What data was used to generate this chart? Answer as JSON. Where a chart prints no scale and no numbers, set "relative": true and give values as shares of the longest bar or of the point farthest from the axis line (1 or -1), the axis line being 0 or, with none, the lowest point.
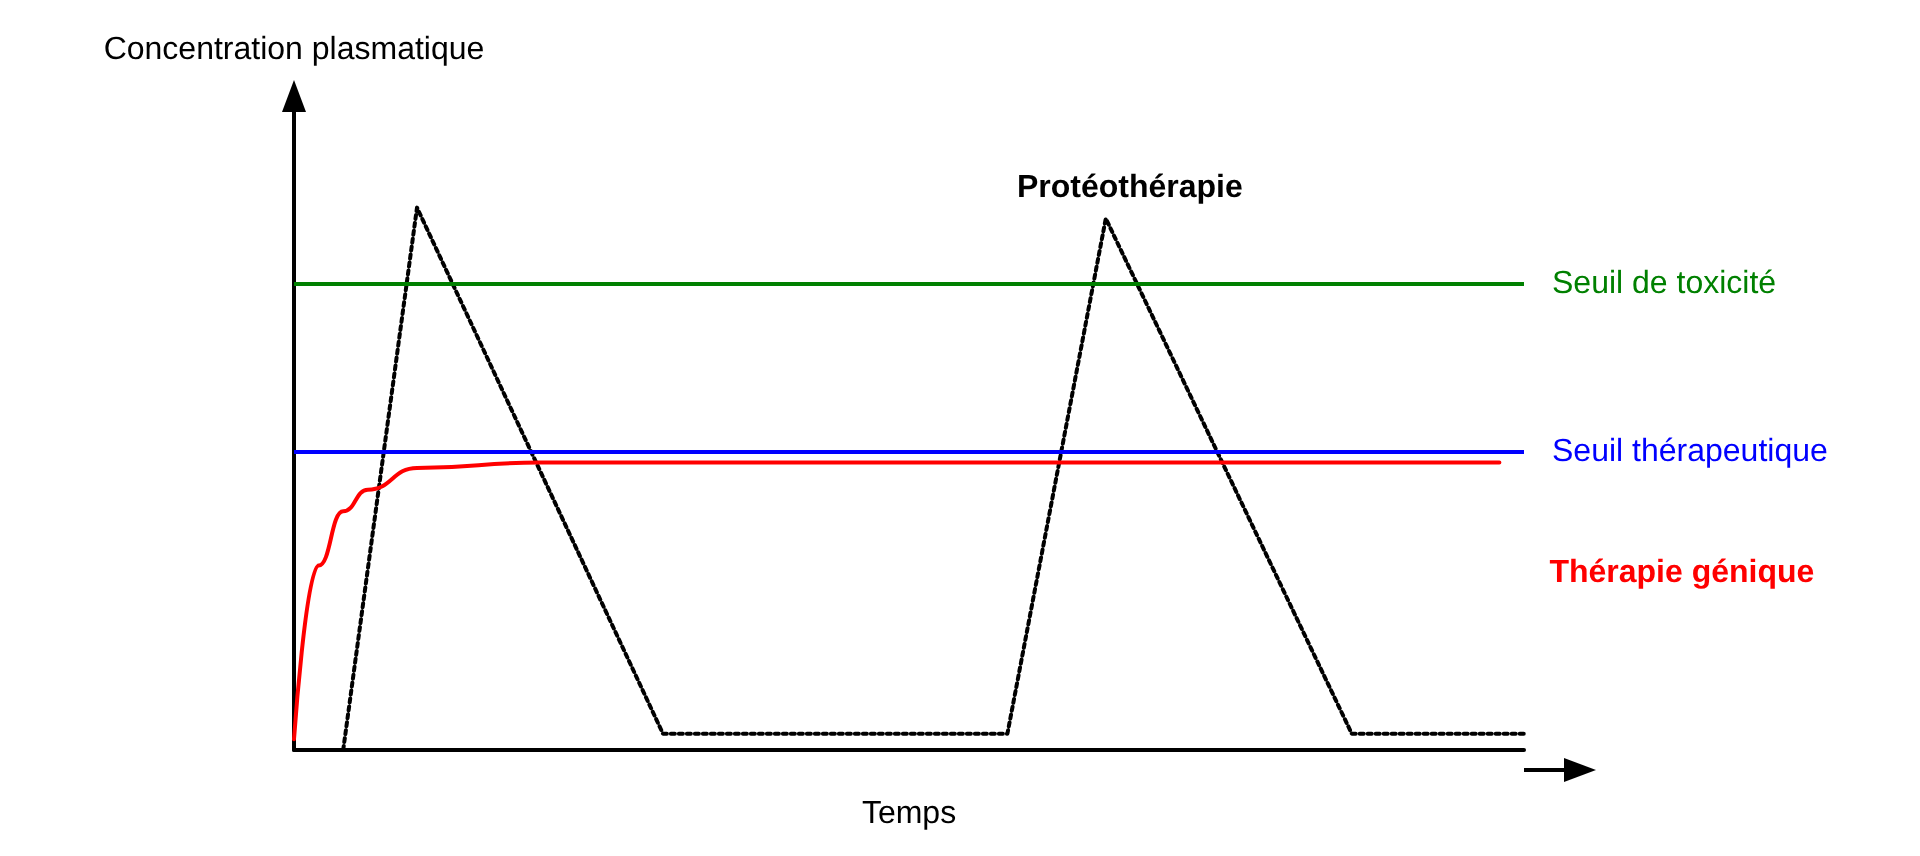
{
  "chart_data": {
    "type": "line",
    "relative": true,
    "xlabel": "Temps",
    "ylabel": "Concentration plasmatique",
    "categories": [
      null,
      null,
      null,
      null,
      null,
      null,
      null,
      null,
      null,
      null,
      null,
      null,
      null,
      null,
      null,
      null,
      null,
      null,
      null,
      null,
      null,
      null,
      null,
      null,
      null,
      null,
      null,
      null,
      null,
      null,
      null,
      null,
      null,
      null,
      null,
      null,
      null,
      null,
      null,
      null,
      null,
      null,
      null,
      null,
      null,
      null,
      null,
      null,
      null,
      null,
      null
    ],
    "series": [
      {
        "name": "Protéothérapie",
        "color": "#000000",
        "line_style": "dotted",
        "values": [
          null,
          null,
          0,
          null,
          null,
          1,
          null,
          null,
          null,
          null,
          null,
          null,
          null,
          null,
          null,
          0.03,
          null,
          null,
          null,
          null,
          null,
          null,
          null,
          null,
          null,
          null,
          null,
          null,
          null,
          0.03,
          null,
          null,
          null,
          0.98,
          null,
          null,
          null,
          null,
          null,
          null,
          null,
          null,
          null,
          0.03,
          null,
          null,
          null,
          null,
          null,
          null,
          0.03
        ]
      },
      {
        "name": "Thérapie génique",
        "color": "#ff0000",
        "line_style": "solid",
        "values": [
          0.02,
          0.34,
          0.44,
          0.48,
          null,
          0.52,
          null,
          null,
          null,
          null,
          0.53,
          null,
          null,
          null,
          null,
          null,
          null,
          null,
          null,
          null,
          null,
          null,
          null,
          null,
          null,
          null,
          null,
          null,
          null,
          null,
          null,
          null,
          null,
          null,
          null,
          null,
          null,
          null,
          null,
          null,
          null,
          null,
          null,
          null,
          null,
          null,
          null,
          null,
          null,
          0.53,
          null
        ]
      }
    ],
    "ref_lines": [
      {
        "axis": "y",
        "value": 0.86,
        "label": "Seuil de toxicité",
        "color": "#008000"
      },
      {
        "axis": "y",
        "value": 0.55,
        "label": "Seuil thérapeutique",
        "color": "#0000ff"
      }
    ]
  }
}
